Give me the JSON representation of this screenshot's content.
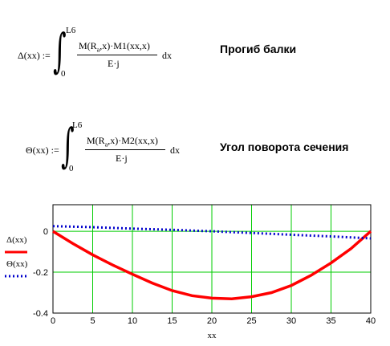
{
  "formula1": {
    "lhs": "Δ(xx) :=",
    "upper": "L6",
    "lower": "0",
    "numerator_pre": "M(R",
    "numerator_sub": "a",
    "numerator_post": ",x)·M1(xx,x)",
    "denominator": "E·j",
    "dx": "dx"
  },
  "heading1": "Прогиб балки",
  "formula2": {
    "lhs": "Θ(xx) :=",
    "upper": "L6",
    "lower": "0",
    "numerator_pre": "M(R",
    "numerator_sub": "a",
    "numerator_post": ",x)·M2(xx,x)",
    "denominator": "E·j",
    "dx": "dx"
  },
  "heading2": "Угол поворота сечения",
  "chart_data": {
    "type": "line",
    "xlabel": "xx",
    "xlim": [
      0,
      40
    ],
    "ylim": [
      -0.4,
      0.2
    ],
    "x_ticks": [
      "0",
      "5",
      "10",
      "15",
      "20",
      "25",
      "30",
      "35",
      "40"
    ],
    "y_ticks": [
      "0",
      "-0.2",
      "-0.4"
    ],
    "grid": true,
    "grid_color": "#00cc00",
    "series": [
      {
        "name": "Δ(xx)",
        "color": "#ff0000",
        "style": "solid",
        "x": [
          0,
          2.5,
          5,
          7.5,
          10,
          12.5,
          15,
          17.5,
          20,
          22.5,
          25,
          27.5,
          30,
          32.5,
          35,
          37.5,
          40
        ],
        "y": [
          0,
          -0.06,
          -0.115,
          -0.165,
          -0.21,
          -0.253,
          -0.29,
          -0.315,
          -0.327,
          -0.33,
          -0.32,
          -0.3,
          -0.265,
          -0.215,
          -0.155,
          -0.085,
          0
        ]
      },
      {
        "name": "Θ(xx)",
        "color": "#0000cc",
        "style": "dotted",
        "x": [
          0,
          5,
          10,
          15,
          20,
          25,
          30,
          35,
          40
        ],
        "y": [
          0.025,
          0.02,
          0.013,
          0.007,
          0.0,
          -0.008,
          -0.017,
          -0.025,
          -0.035
        ]
      }
    ]
  }
}
